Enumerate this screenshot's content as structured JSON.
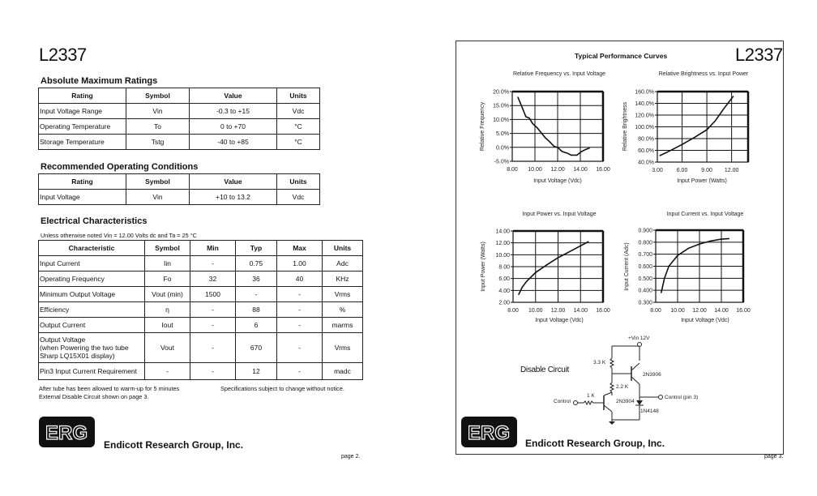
{
  "page2": {
    "model": "L2337",
    "abs_max": {
      "heading": "Absolute Maximum Ratings",
      "columns": [
        "Rating",
        "Symbol",
        "Value",
        "Units"
      ],
      "rows": [
        [
          "Input Voltage Range",
          "Vin",
          "-0.3 to +15",
          "Vdc"
        ],
        [
          "Operating Temperature",
          "To",
          "0 to +70",
          "°C"
        ],
        [
          "Storage Temperature",
          "Tstg",
          "-40 to +85",
          "°C"
        ]
      ]
    },
    "rec_op": {
      "heading": "Recommended Operating Conditions",
      "columns": [
        "Rating",
        "Symbol",
        "Value",
        "Units"
      ],
      "rows": [
        [
          "Input Voltage",
          "Vin",
          "+10 to 13.2",
          "Vdc"
        ]
      ]
    },
    "elec": {
      "heading": "Electrical Characteristics",
      "note": "Unless otherwise noted Vin = 12.00 Volts dc and Ta = 25 °C",
      "columns": [
        "Characteristic",
        "Symbol",
        "Min",
        "Typ",
        "Max",
        "Units"
      ],
      "rows": [
        [
          "Input Current",
          "Iin",
          "-",
          "0.75",
          "1.00",
          "Adc"
        ],
        [
          "Operating Frequency",
          "Fo",
          "32",
          "36",
          "40",
          "KHz"
        ],
        [
          "Minimum Output Voltage",
          "Vout (min)",
          "1500",
          "-",
          "-",
          "Vrms"
        ],
        [
          "Efficiency",
          "η",
          "-",
          "88",
          "-",
          "%"
        ],
        [
          "Output Current",
          "Iout",
          "-",
          "6",
          "-",
          "marms"
        ],
        [
          "Output Voltage\n  (when Powering the two tube\n  Sharp LQ15X01 display)",
          "Vout",
          "-",
          "670",
          "-",
          "Vrms"
        ],
        [
          "Pin3 Input Current Requirement",
          "-",
          "-",
          "12",
          "-",
          "madc"
        ]
      ],
      "footnote1": "After tube has been allowed to warm-up for 5 minutes",
      "footnote2": "External Disable Circuit shown on page 3.",
      "footnote3": "Specifications subject to change without notice."
    },
    "logo_text": "ERG",
    "company": "Endicott Research Group, Inc.",
    "page_label": "page 2."
  },
  "page3": {
    "title": "Typical Performance Curves",
    "model": "L2337",
    "circuit": {
      "title": "Disable Circuit",
      "vin": "+Vin 12V",
      "r1": "3.3 K",
      "r2": "2.2 K",
      "r3": "1 K",
      "q1": "2N3906",
      "q2": "2N3904",
      "diode": "1N4148",
      "control_in": "Control",
      "control_out": "Control (pin 3)"
    },
    "logo_text": "ERG",
    "company": "Endicott Research Group, Inc.",
    "page_label": "page 3."
  },
  "chart_data": [
    {
      "type": "line",
      "title": "Relative Frequency vs. Input Voltage",
      "xlabel": "Input Voltage (Vdc)",
      "ylabel": "Relative Frequency",
      "xlim": [
        8,
        16
      ],
      "ylim": [
        -5,
        20
      ],
      "xticks": [
        "8.00",
        "10.00",
        "12.00",
        "14.00",
        "16.00"
      ],
      "yticks": [
        "-5.0%",
        "0.0%",
        "5.0%",
        "10.0%",
        "15.0%",
        "20.0%"
      ],
      "grid": true,
      "x": [
        8.5,
        8.9,
        9.2,
        9.5,
        9.8,
        10.2,
        10.6,
        10.9,
        11.3,
        11.7,
        12.0,
        12.4,
        12.8,
        13.2,
        13.7,
        14.1,
        14.5,
        14.8
      ],
      "y": [
        18,
        14,
        11,
        10.5,
        8.5,
        7,
        5,
        3.5,
        2,
        0.3,
        0,
        -1.5,
        -2,
        -2.8,
        -2.8,
        -1.5,
        -0.7,
        -0.3
      ]
    },
    {
      "type": "line",
      "title": "Relative Brightness vs. Input Power",
      "xlabel": "Input Power (Watts)",
      "ylabel": "Relative Brightness",
      "xlim": [
        3,
        14
      ],
      "ylim": [
        40,
        160
      ],
      "xticks": [
        "3.00",
        "6.00",
        "9.00",
        "12.00"
      ],
      "yticks": [
        "40.0%",
        "60.0%",
        "80.0%",
        "100.0%",
        "120.0%",
        "140.0%",
        "160.0%"
      ],
      "grid": true,
      "x": [
        3.3,
        4.5,
        6,
        7.5,
        9,
        10,
        11,
        12.2
      ],
      "y": [
        51,
        59,
        70,
        82,
        95,
        110,
        130,
        152
      ]
    },
    {
      "type": "line",
      "title": "Input Power vs. Input Voltage",
      "xlabel": "Input Voltage (Vdc)",
      "ylabel": "Input Power (Watts)",
      "xlim": [
        8,
        16
      ],
      "ylim": [
        2,
        14
      ],
      "xticks": [
        "8.00",
        "10.00",
        "12.00",
        "14.00",
        "16.00"
      ],
      "yticks": [
        "2.00",
        "4.00",
        "6.00",
        "8.00",
        "10.00",
        "12.00",
        "14.00"
      ],
      "grid": true,
      "x": [
        8.5,
        8.8,
        9.2,
        10,
        11,
        12,
        13,
        14,
        14.7
      ],
      "y": [
        3.3,
        4.5,
        5.5,
        7,
        8.3,
        9.5,
        10.5,
        11.5,
        12.2
      ]
    },
    {
      "type": "line",
      "title": "Input Current vs. Input Voltage",
      "xlabel": "Input Voltage (Vdc)",
      "ylabel": "Input Current (Adc)",
      "xlim": [
        8,
        16
      ],
      "ylim": [
        0.3,
        0.9
      ],
      "xticks": [
        "8.00",
        "10.00",
        "12.00",
        "14.00",
        "16.00"
      ],
      "yticks": [
        "0.300",
        "0.400",
        "0.500",
        "0.600",
        "0.700",
        "0.800",
        "0.900"
      ],
      "grid": true,
      "x": [
        8.5,
        8.8,
        9.2,
        10,
        11,
        12,
        13,
        14,
        14.7
      ],
      "y": [
        0.38,
        0.5,
        0.6,
        0.69,
        0.75,
        0.785,
        0.81,
        0.825,
        0.83
      ]
    }
  ]
}
